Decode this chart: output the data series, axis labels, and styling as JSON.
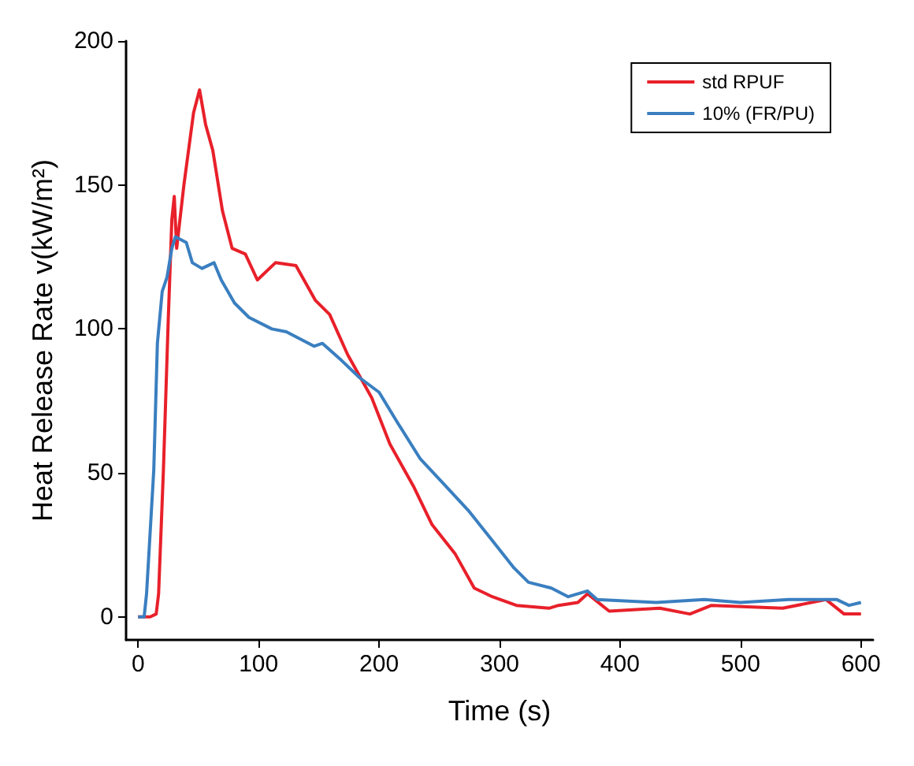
{
  "chart_data": {
    "type": "line",
    "xlabel": "Time (s)",
    "ylabel": "Heat Release Rate v(kW/m²)",
    "xlim": [
      -10,
      610
    ],
    "xticks": [
      0,
      100,
      200,
      300,
      400,
      500,
      600
    ],
    "ylim": [
      -8,
      200
    ],
    "yticks": [
      0,
      50,
      100,
      150,
      200
    ],
    "grid": false,
    "legend": "top right",
    "marker": "none",
    "line_style": "solid",
    "series": [
      {
        "name": "std RPUF",
        "color": "#e8202a",
        "x": [
          0,
          10,
          15,
          17,
          21,
          25,
          28,
          30,
          32,
          38,
          46,
          51,
          56,
          62,
          70,
          78,
          89,
          99,
          114,
          131,
          147,
          159,
          174,
          194,
          209,
          229,
          244,
          263,
          279,
          294,
          314,
          341,
          349,
          365,
          373,
          391,
          433,
          458,
          476,
          535,
          571,
          586,
          600
        ],
        "values": [
          0,
          0,
          1,
          8,
          51,
          103,
          138,
          146,
          128,
          150,
          175,
          183,
          171,
          162,
          141,
          128,
          126,
          117,
          123,
          122,
          110,
          105,
          91,
          76,
          60,
          45,
          32,
          22,
          10,
          7,
          4,
          3,
          4,
          5,
          8,
          2,
          3,
          1,
          4,
          3,
          6,
          1,
          1
        ]
      },
      {
        "name": "10% (FR/PU)",
        "color": "#3a7fc0",
        "x": [
          0,
          5,
          7,
          13,
          16,
          20,
          24,
          28,
          31,
          40,
          45,
          53,
          63,
          69,
          80,
          92,
          111,
          123,
          146,
          153,
          169,
          184,
          200,
          216,
          234,
          254,
          274,
          293,
          312,
          324,
          343,
          357,
          373,
          381,
          430,
          470,
          500,
          540,
          580,
          590,
          600
        ],
        "values": [
          0,
          0,
          8,
          51,
          95,
          113,
          118,
          128,
          132,
          130,
          123,
          121,
          123,
          117,
          109,
          104,
          100,
          99,
          94,
          95,
          89,
          83,
          78,
          67,
          55,
          46,
          37,
          27,
          17,
          12,
          10,
          7,
          9,
          6,
          5,
          6,
          5,
          6,
          6,
          4,
          5
        ]
      }
    ]
  }
}
